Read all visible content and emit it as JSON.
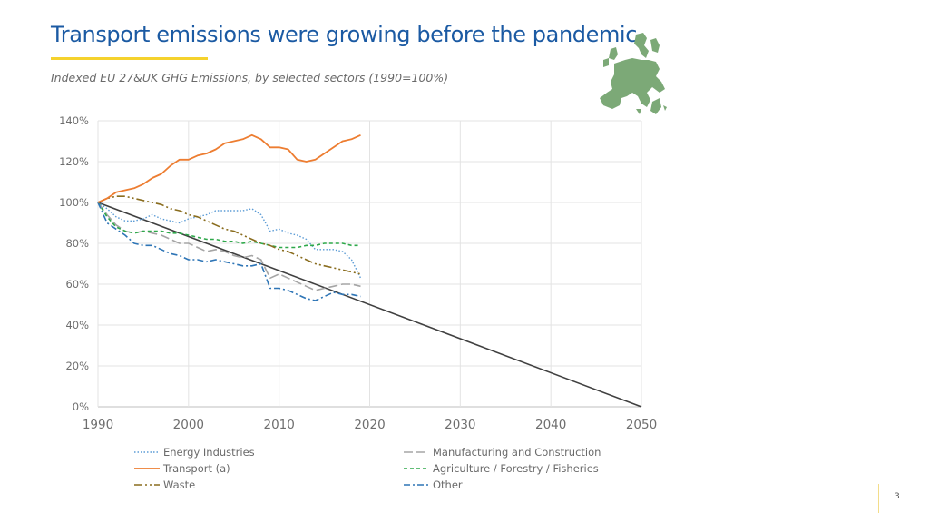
{
  "header": {
    "title": "Transport emissions were growing before the pandemic",
    "subtitle": "Indexed EU 27&UK GHG Emissions, by selected sectors (1990=100%)"
  },
  "icons": {
    "map": "eu-map-icon",
    "map_color": "#7ca977"
  },
  "page_number": "3",
  "chart_data": {
    "type": "line",
    "title": "Indexed EU 27&UK GHG Emissions, by selected sectors (1990=100%)",
    "xlabel": "",
    "ylabel": "",
    "xlim": [
      1990,
      2050
    ],
    "ylim": [
      0,
      140
    ],
    "x_ticks": [
      1990,
      2000,
      2010,
      2020,
      2030,
      2040,
      2050
    ],
    "x_tick_labels": [
      "1990",
      "2000",
      "2010",
      "2020",
      "2030",
      "2040",
      "2050"
    ],
    "y_ticks": [
      0,
      20,
      40,
      60,
      80,
      100,
      120,
      140
    ],
    "y_tick_labels": [
      "0%",
      "20%",
      "40%",
      "60%",
      "80%",
      "100%",
      "120%",
      "140%"
    ],
    "grid": true,
    "legend_position": "bottom",
    "series": [
      {
        "name": "Energy Industries",
        "color": "#5b9bd5",
        "dash": "dotted",
        "x": [
          1990,
          1991,
          1992,
          1993,
          1994,
          1995,
          1996,
          1997,
          1998,
          1999,
          2000,
          2001,
          2002,
          2003,
          2004,
          2005,
          2006,
          2007,
          2008,
          2009,
          2010,
          2011,
          2012,
          2013,
          2014,
          2015,
          2016,
          2017,
          2018,
          2019
        ],
        "values": [
          100,
          97,
          93,
          91,
          91,
          92,
          94,
          92,
          91,
          90,
          92,
          93,
          94,
          96,
          96,
          96,
          96,
          97,
          94,
          86,
          87,
          85,
          84,
          82,
          77,
          77,
          77,
          76,
          72,
          63
        ]
      },
      {
        "name": "Manufacturing and Construction",
        "color": "#a5a5a5",
        "dash": "longdash",
        "x": [
          1990,
          1991,
          1992,
          1993,
          1994,
          1995,
          1996,
          1997,
          1998,
          1999,
          2000,
          2001,
          2002,
          2003,
          2004,
          2005,
          2006,
          2007,
          2008,
          2009,
          2010,
          2011,
          2012,
          2013,
          2014,
          2015,
          2016,
          2017,
          2018,
          2019
        ],
        "values": [
          100,
          94,
          89,
          86,
          85,
          86,
          85,
          84,
          82,
          80,
          80,
          78,
          76,
          77,
          76,
          74,
          73,
          74,
          72,
          63,
          65,
          63,
          61,
          59,
          57,
          58,
          59,
          60,
          60,
          59
        ]
      },
      {
        "name": "Transport  (a)",
        "color": "#ed7d31",
        "dash": "solid",
        "x": [
          1990,
          1991,
          1992,
          1993,
          1994,
          1995,
          1996,
          1997,
          1998,
          1999,
          2000,
          2001,
          2002,
          2003,
          2004,
          2005,
          2006,
          2007,
          2008,
          2009,
          2010,
          2011,
          2012,
          2013,
          2014,
          2015,
          2016,
          2017,
          2018,
          2019
        ],
        "values": [
          100,
          102,
          105,
          106,
          107,
          109,
          112,
          114,
          118,
          121,
          121,
          123,
          124,
          126,
          129,
          130,
          131,
          133,
          131,
          127,
          127,
          126,
          121,
          120,
          121,
          124,
          127,
          130,
          131,
          133
        ]
      },
      {
        "name": "Agriculture / Forestry / Fisheries",
        "color": "#2ea84a",
        "dash": "dashed",
        "x": [
          1990,
          1991,
          1992,
          1993,
          1994,
          1995,
          1996,
          1997,
          1998,
          1999,
          2000,
          2001,
          2002,
          2003,
          2004,
          2005,
          2006,
          2007,
          2008,
          2009,
          2010,
          2011,
          2012,
          2013,
          2014,
          2015,
          2016,
          2017,
          2018,
          2019
        ],
        "values": [
          100,
          93,
          88,
          86,
          85,
          86,
          86,
          86,
          85,
          85,
          84,
          83,
          82,
          82,
          81,
          81,
          80,
          81,
          80,
          79,
          78,
          78,
          78,
          79,
          79,
          80,
          80,
          80,
          79,
          79
        ]
      },
      {
        "name": "Waste",
        "color": "#8a6d1f",
        "dash": "dashdotdot",
        "x": [
          1990,
          1991,
          1992,
          1993,
          1994,
          1995,
          1996,
          1997,
          1998,
          1999,
          2000,
          2001,
          2002,
          2003,
          2004,
          2005,
          2006,
          2007,
          2008,
          2009,
          2010,
          2011,
          2012,
          2013,
          2014,
          2015,
          2016,
          2017,
          2018,
          2019
        ],
        "values": [
          100,
          102,
          103,
          103,
          102,
          101,
          100,
          99,
          97,
          96,
          94,
          93,
          91,
          89,
          87,
          86,
          84,
          82,
          80,
          79,
          77,
          76,
          74,
          72,
          70,
          69,
          68,
          67,
          66,
          65
        ]
      },
      {
        "name": "Other",
        "color": "#2e75b6",
        "dash": "dashdot",
        "x": [
          1990,
          1991,
          1992,
          1993,
          1994,
          1995,
          1996,
          1997,
          1998,
          1999,
          2000,
          2001,
          2002,
          2003,
          2004,
          2005,
          2006,
          2007,
          2008,
          2009,
          2010,
          2011,
          2012,
          2013,
          2014,
          2015,
          2016,
          2017,
          2018,
          2019
        ],
        "values": [
          100,
          90,
          87,
          84,
          80,
          79,
          79,
          77,
          75,
          74,
          72,
          72,
          71,
          72,
          71,
          70,
          69,
          69,
          70,
          58,
          58,
          57,
          55,
          53,
          52,
          54,
          56,
          55,
          55,
          54
        ]
      },
      {
        "name": "",
        "color": "#404040",
        "dash": "solid",
        "show_in_legend": false,
        "x": [
          1990,
          2050
        ],
        "values": [
          100,
          0
        ]
      }
    ]
  }
}
